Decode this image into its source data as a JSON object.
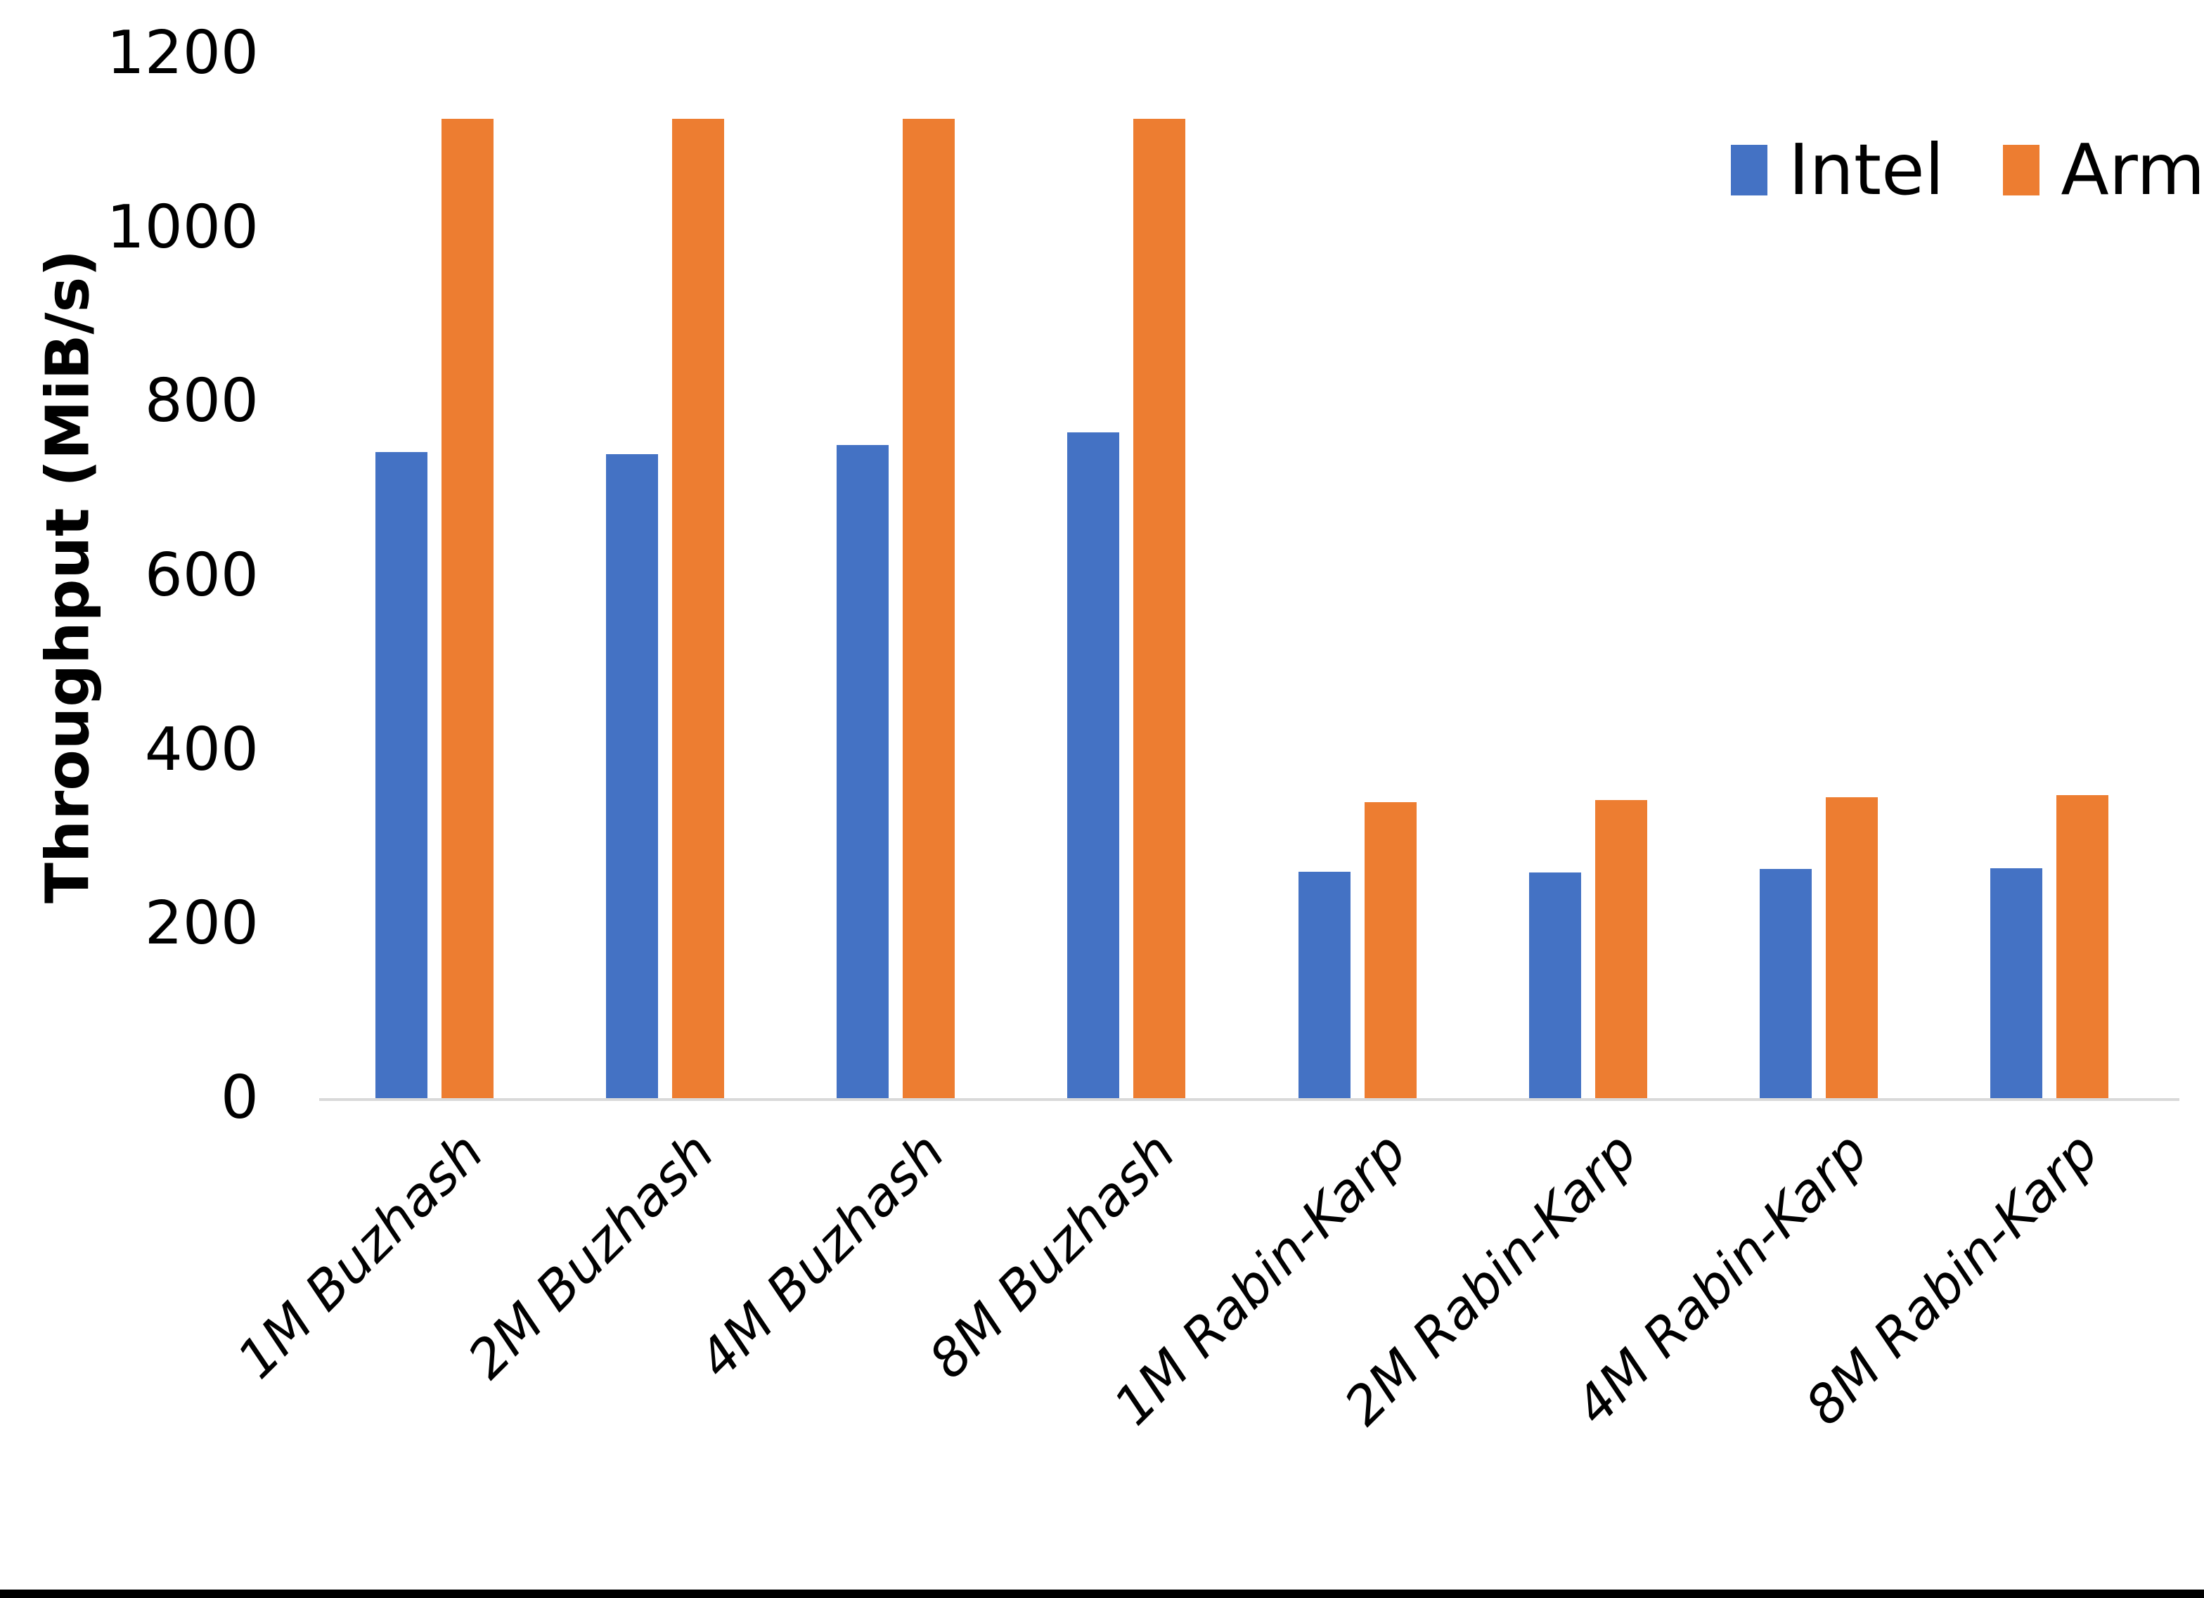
{
  "chart_data": {
    "type": "bar",
    "title": "",
    "xlabel": "",
    "ylabel": "Throughput (MiB/s)",
    "ylim": [
      0,
      1200
    ],
    "yticks": [
      0,
      200,
      400,
      600,
      800,
      1000,
      1200
    ],
    "grid": false,
    "legend_position": "top-right",
    "categories": [
      "1M Buzhash",
      "2M Buzhash",
      "4M Buzhash",
      "8M Buzhash",
      "1M Rabin-Karp",
      "2M Rabin-Karp",
      "4M Rabin-Karp",
      "8M Rabin-Karp"
    ],
    "series": [
      {
        "name": "Intel",
        "color": "#4472c4",
        "values": [
          742,
          740,
          750,
          765,
          260,
          259,
          263,
          264
        ]
      },
      {
        "name": "Arm",
        "color": "#ed7d31",
        "values": [
          1125,
          1125,
          1125,
          1125,
          340,
          342,
          346,
          348
        ]
      }
    ]
  },
  "colors": {
    "background": "#ffffff",
    "axis_line": "#d9d9d9",
    "text": "#000000",
    "bottom_border": "#000000"
  }
}
